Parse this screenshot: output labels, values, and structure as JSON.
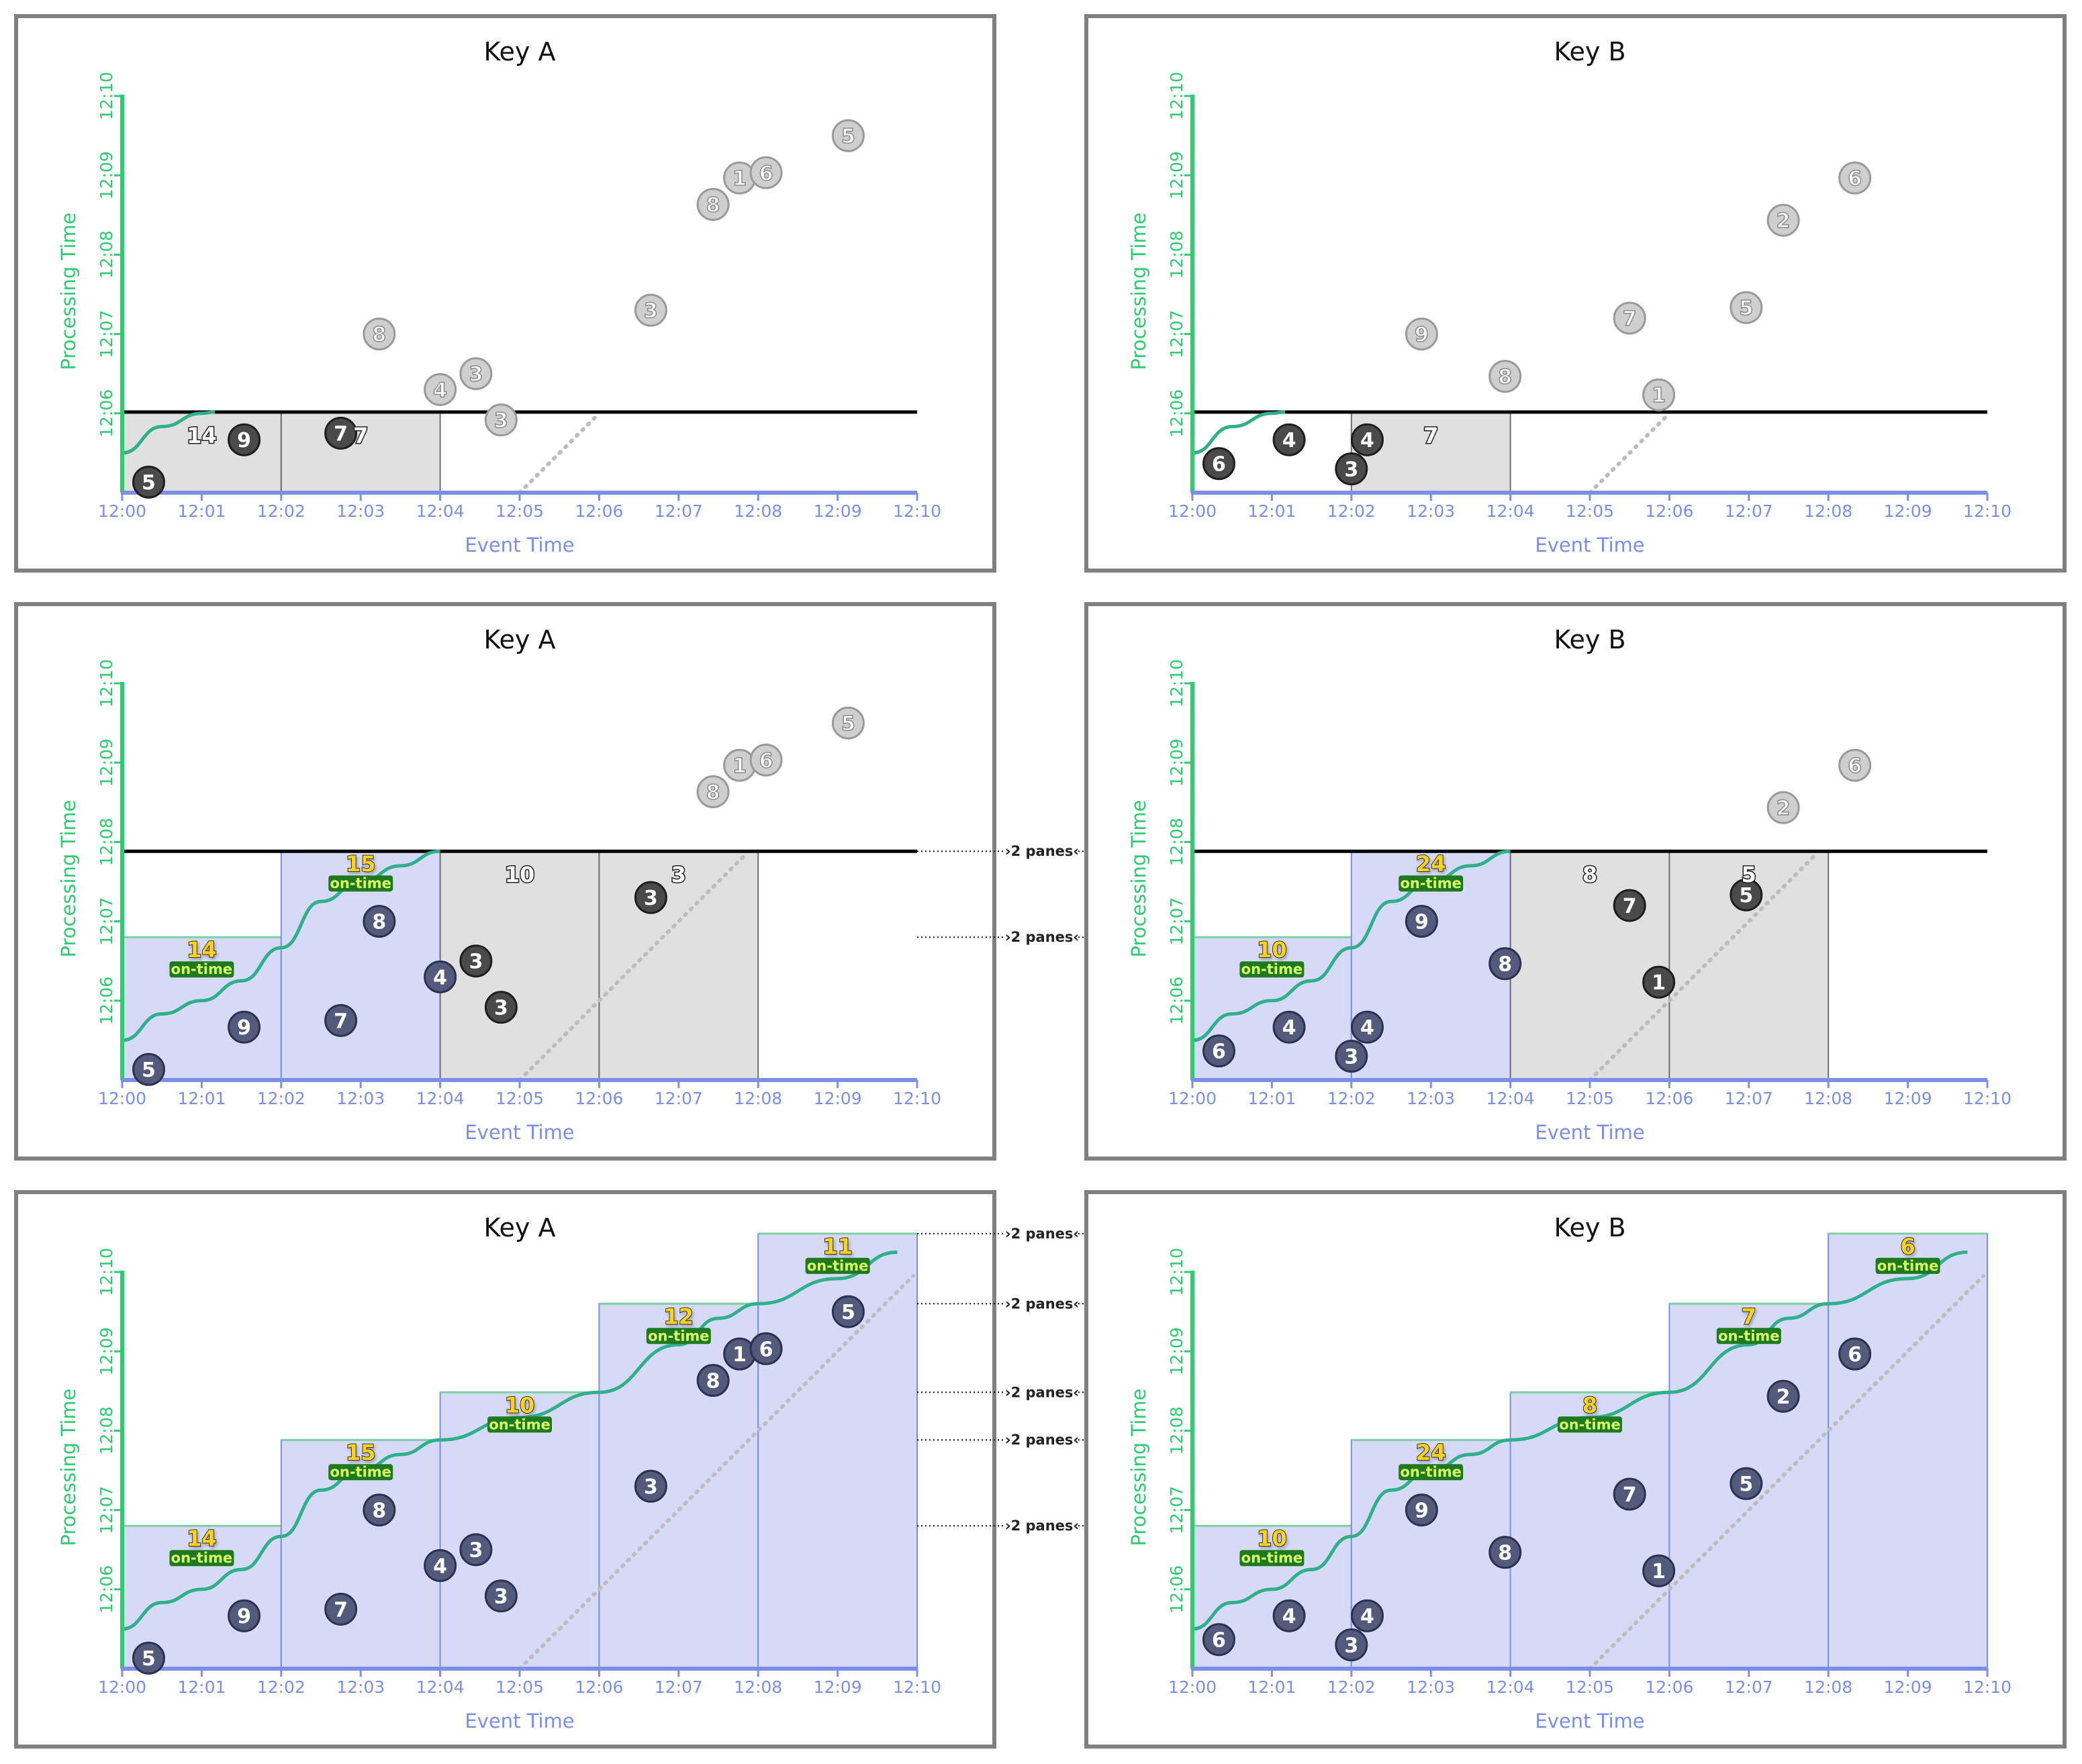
{
  "tick_labels": [
    "12:00",
    "12:01",
    "12:02",
    "12:03",
    "12:04",
    "12:05",
    "12:06",
    "12:07",
    "12:08",
    "12:09",
    "12:10"
  ],
  "colors": {
    "frame": "#808080",
    "green": "#2ecc71",
    "blue": "#7b8ee8",
    "pane_blue": "#d6daf6",
    "pane_gray": "#e0e0e0",
    "label_yellow": "#ffd21a",
    "label_green_bg": "#1f7a1f",
    "dot_dark": "#4a4a4a",
    "dot_navy": "#545a7c",
    "dot_light": "#cfcfcf"
  },
  "chart_data": [
    {
      "type": "scatter",
      "title": "Key A",
      "xlabel": "Event Time",
      "ylabel": "Processing Time",
      "xlim": [
        "12:00",
        "12:10"
      ],
      "ylim": [
        "12:05",
        "12:10"
      ],
      "watermark_line": "12:06:01",
      "points": [
        {
          "x": "12:00:20",
          "y": "12:05:08",
          "v": "5",
          "state": "dark"
        },
        {
          "x": "12:01:32",
          "y": "12:05:40",
          "v": "9",
          "state": "dark"
        },
        {
          "x": "12:02:45",
          "y": "12:05:45",
          "v": "7",
          "state": "dark"
        },
        {
          "x": "12:03:14",
          "y": "12:07:00",
          "v": "8",
          "state": "future"
        },
        {
          "x": "12:04:00",
          "y": "12:06:18",
          "v": "4",
          "state": "future"
        },
        {
          "x": "12:04:27",
          "y": "12:06:30",
          "v": "3",
          "state": "future"
        },
        {
          "x": "12:04:46",
          "y": "12:05:55",
          "v": "3",
          "state": "future"
        },
        {
          "x": "12:06:39",
          "y": "12:07:18",
          "v": "3",
          "state": "future"
        },
        {
          "x": "12:07:26",
          "y": "12:08:38",
          "v": "8",
          "state": "future"
        },
        {
          "x": "12:07:46",
          "y": "12:08:58",
          "v": "1",
          "state": "future"
        },
        {
          "x": "12:08:06",
          "y": "12:09:02",
          "v": "6",
          "state": "future"
        },
        {
          "x": "12:09:08",
          "y": "12:09:30",
          "v": "5",
          "state": "future"
        }
      ],
      "panes": [
        {
          "start": "12:00",
          "end": "12:02",
          "top": "12:06:01",
          "style": "gray",
          "value": "14"
        },
        {
          "start": "12:02",
          "end": "12:04",
          "top": "12:06:01",
          "style": "gray",
          "value": "7"
        }
      ],
      "watermark_curve": [
        [
          "12:00:00",
          "12:05:30"
        ],
        [
          "12:00:30",
          "12:05:50"
        ],
        [
          "12:01:00",
          "12:06:00"
        ],
        [
          "12:01:10",
          "12:06:01"
        ]
      ]
    },
    {
      "type": "scatter",
      "title": "Key B",
      "xlabel": "Event Time",
      "ylabel": "Processing Time",
      "xlim": [
        "12:00",
        "12:10"
      ],
      "ylim": [
        "12:05",
        "12:10"
      ],
      "watermark_line": "12:06:01",
      "points": [
        {
          "x": "12:00:20",
          "y": "12:05:22",
          "v": "6",
          "state": "dark"
        },
        {
          "x": "12:01:13",
          "y": "12:05:40",
          "v": "4",
          "state": "dark"
        },
        {
          "x": "12:02:00",
          "y": "12:05:18",
          "v": "3",
          "state": "dark"
        },
        {
          "x": "12:02:12",
          "y": "12:05:40",
          "v": "4",
          "state": "dark"
        },
        {
          "x": "12:02:53",
          "y": "12:07:00",
          "v": "9",
          "state": "future"
        },
        {
          "x": "12:03:56",
          "y": "12:06:28",
          "v": "8",
          "state": "future"
        },
        {
          "x": "12:05:30",
          "y": "12:07:12",
          "v": "7",
          "state": "future"
        },
        {
          "x": "12:05:52",
          "y": "12:06:14",
          "v": "1",
          "state": "future"
        },
        {
          "x": "12:06:58",
          "y": "12:07:20",
          "v": "5",
          "state": "future"
        },
        {
          "x": "12:07:26",
          "y": "12:08:26",
          "v": "2",
          "state": "future"
        },
        {
          "x": "12:08:20",
          "y": "12:08:58",
          "v": "6",
          "state": "future"
        }
      ],
      "panes": [
        {
          "start": "12:02",
          "end": "12:04",
          "top": "12:06:01",
          "style": "gray",
          "value": "7"
        }
      ],
      "watermark_curve": [
        [
          "12:00:00",
          "12:05:30"
        ],
        [
          "12:00:30",
          "12:05:50"
        ],
        [
          "12:01:00",
          "12:06:00"
        ],
        [
          "12:01:10",
          "12:06:01"
        ]
      ]
    },
    {
      "type": "scatter",
      "title": "Key A",
      "xlabel": "Event Time",
      "ylabel": "Processing Time",
      "xlim": [
        "12:00",
        "12:10"
      ],
      "ylim": [
        "12:05",
        "12:10"
      ],
      "watermark_line": "12:07:53",
      "points": [
        {
          "x": "12:00:20",
          "y": "12:05:08",
          "v": "5",
          "state": "navy"
        },
        {
          "x": "12:01:32",
          "y": "12:05:40",
          "v": "9",
          "state": "navy"
        },
        {
          "x": "12:02:45",
          "y": "12:05:45",
          "v": "7",
          "state": "navy"
        },
        {
          "x": "12:03:14",
          "y": "12:07:00",
          "v": "8",
          "state": "navy"
        },
        {
          "x": "12:04:00",
          "y": "12:06:18",
          "v": "4",
          "state": "navy"
        },
        {
          "x": "12:04:27",
          "y": "12:06:30",
          "v": "3",
          "state": "dark"
        },
        {
          "x": "12:04:46",
          "y": "12:05:55",
          "v": "3",
          "state": "dark"
        },
        {
          "x": "12:06:39",
          "y": "12:07:18",
          "v": "3",
          "state": "dark"
        },
        {
          "x": "12:07:26",
          "y": "12:08:38",
          "v": "8",
          "state": "future"
        },
        {
          "x": "12:07:46",
          "y": "12:08:58",
          "v": "1",
          "state": "future"
        },
        {
          "x": "12:08:06",
          "y": "12:09:02",
          "v": "6",
          "state": "future"
        },
        {
          "x": "12:09:08",
          "y": "12:09:30",
          "v": "5",
          "state": "future"
        }
      ],
      "panes": [
        {
          "start": "12:00",
          "end": "12:02",
          "top": "12:06:48",
          "style": "blue",
          "value": "14",
          "ontime": "on-time"
        },
        {
          "start": "12:02",
          "end": "12:04",
          "top": "12:07:53",
          "style": "blue",
          "value": "15",
          "ontime": "on-time"
        },
        {
          "start": "12:04",
          "end": "12:06",
          "top": "12:07:53",
          "style": "gray",
          "value": "10"
        },
        {
          "start": "12:06",
          "end": "12:08",
          "top": "12:07:53",
          "style": "gray",
          "value": "3"
        }
      ],
      "watermark_curve": [
        [
          "12:00:00",
          "12:05:30"
        ],
        [
          "12:00:30",
          "12:05:50"
        ],
        [
          "12:01:00",
          "12:06:00"
        ],
        [
          "12:01:30",
          "12:06:15"
        ],
        [
          "12:02:00",
          "12:06:40"
        ],
        [
          "12:02:30",
          "12:07:15"
        ],
        [
          "12:03:00",
          "12:07:30"
        ],
        [
          "12:03:30",
          "12:07:42"
        ],
        [
          "12:04:00",
          "12:07:53"
        ]
      ],
      "annotations": [
        {
          "y": "12:07:53",
          "text": "2 panes"
        },
        {
          "y": "12:06:48",
          "text": "2 panes"
        }
      ]
    },
    {
      "type": "scatter",
      "title": "Key B",
      "xlabel": "Event Time",
      "ylabel": "Processing Time",
      "xlim": [
        "12:00",
        "12:10"
      ],
      "ylim": [
        "12:05",
        "12:10"
      ],
      "watermark_line": "12:07:53",
      "points": [
        {
          "x": "12:00:20",
          "y": "12:05:22",
          "v": "6",
          "state": "navy"
        },
        {
          "x": "12:01:13",
          "y": "12:05:40",
          "v": "4",
          "state": "navy"
        },
        {
          "x": "12:02:00",
          "y": "12:05:18",
          "v": "3",
          "state": "navy"
        },
        {
          "x": "12:02:12",
          "y": "12:05:40",
          "v": "4",
          "state": "navy"
        },
        {
          "x": "12:02:53",
          "y": "12:07:00",
          "v": "9",
          "state": "navy"
        },
        {
          "x": "12:03:56",
          "y": "12:06:28",
          "v": "8",
          "state": "navy"
        },
        {
          "x": "12:05:30",
          "y": "12:07:12",
          "v": "7",
          "state": "dark"
        },
        {
          "x": "12:05:52",
          "y": "12:06:14",
          "v": "1",
          "state": "dark"
        },
        {
          "x": "12:06:58",
          "y": "12:07:20",
          "v": "5",
          "state": "dark"
        },
        {
          "x": "12:07:26",
          "y": "12:08:26",
          "v": "2",
          "state": "future"
        },
        {
          "x": "12:08:20",
          "y": "12:08:58",
          "v": "6",
          "state": "future"
        }
      ],
      "panes": [
        {
          "start": "12:00",
          "end": "12:02",
          "top": "12:06:48",
          "style": "blue",
          "value": "10",
          "ontime": "on-time"
        },
        {
          "start": "12:02",
          "end": "12:04",
          "top": "12:07:53",
          "style": "blue",
          "value": "24",
          "ontime": "on-time"
        },
        {
          "start": "12:04",
          "end": "12:06",
          "top": "12:07:53",
          "style": "gray",
          "value": "8"
        },
        {
          "start": "12:06",
          "end": "12:08",
          "top": "12:07:53",
          "style": "gray",
          "value": "5"
        }
      ],
      "watermark_curve": [
        [
          "12:00:00",
          "12:05:30"
        ],
        [
          "12:00:30",
          "12:05:50"
        ],
        [
          "12:01:00",
          "12:06:00"
        ],
        [
          "12:01:30",
          "12:06:15"
        ],
        [
          "12:02:00",
          "12:06:40"
        ],
        [
          "12:02:30",
          "12:07:15"
        ],
        [
          "12:03:00",
          "12:07:30"
        ],
        [
          "12:03:30",
          "12:07:42"
        ],
        [
          "12:04:00",
          "12:07:53"
        ]
      ]
    },
    {
      "type": "scatter",
      "title": "Key A",
      "xlabel": "Event Time",
      "ylabel": "Processing Time",
      "xlim": [
        "12:00",
        "12:10"
      ],
      "ylim": [
        "12:05",
        "12:10"
      ],
      "points": [
        {
          "x": "12:00:20",
          "y": "12:05:08",
          "v": "5",
          "state": "navy"
        },
        {
          "x": "12:01:32",
          "y": "12:05:40",
          "v": "9",
          "state": "navy"
        },
        {
          "x": "12:02:45",
          "y": "12:05:45",
          "v": "7",
          "state": "navy"
        },
        {
          "x": "12:03:14",
          "y": "12:07:00",
          "v": "8",
          "state": "navy"
        },
        {
          "x": "12:04:00",
          "y": "12:06:18",
          "v": "4",
          "state": "navy"
        },
        {
          "x": "12:04:27",
          "y": "12:06:30",
          "v": "3",
          "state": "navy"
        },
        {
          "x": "12:04:46",
          "y": "12:05:55",
          "v": "3",
          "state": "navy"
        },
        {
          "x": "12:06:39",
          "y": "12:07:18",
          "v": "3",
          "state": "navy"
        },
        {
          "x": "12:07:26",
          "y": "12:08:38",
          "v": "8",
          "state": "navy"
        },
        {
          "x": "12:07:46",
          "y": "12:08:58",
          "v": "1",
          "state": "navy"
        },
        {
          "x": "12:08:06",
          "y": "12:09:02",
          "v": "6",
          "state": "navy"
        },
        {
          "x": "12:09:08",
          "y": "12:09:30",
          "v": "5",
          "state": "navy"
        }
      ],
      "panes": [
        {
          "start": "12:00",
          "end": "12:02",
          "top": "12:06:48",
          "style": "blue",
          "value": "14",
          "ontime": "on-time"
        },
        {
          "start": "12:02",
          "end": "12:04",
          "top": "12:07:53",
          "style": "blue",
          "value": "15",
          "ontime": "on-time"
        },
        {
          "start": "12:04",
          "end": "12:06",
          "top": "12:08:29",
          "style": "blue",
          "value": "10",
          "ontime": "on-time"
        },
        {
          "start": "12:06",
          "end": "12:08",
          "top": "12:09:36",
          "style": "blue",
          "value": "12",
          "ontime": "on-time"
        },
        {
          "start": "12:08",
          "end": "12:10",
          "top": "12:10:29",
          "style": "blue",
          "value": "11",
          "ontime": "on-time"
        }
      ],
      "watermark_curve": [
        [
          "12:00:00",
          "12:05:30"
        ],
        [
          "12:00:30",
          "12:05:50"
        ],
        [
          "12:01:00",
          "12:06:00"
        ],
        [
          "12:01:30",
          "12:06:15"
        ],
        [
          "12:02:00",
          "12:06:40"
        ],
        [
          "12:02:30",
          "12:07:15"
        ],
        [
          "12:03:00",
          "12:07:30"
        ],
        [
          "12:03:30",
          "12:07:42"
        ],
        [
          "12:04:00",
          "12:07:53"
        ],
        [
          "12:05:00",
          "12:08:10"
        ],
        [
          "12:06:00",
          "12:08:29"
        ],
        [
          "12:07:00",
          "12:09:05"
        ],
        [
          "12:07:30",
          "12:09:25"
        ],
        [
          "12:08:00",
          "12:09:36"
        ],
        [
          "12:09:00",
          "12:09:55"
        ],
        [
          "12:09:45",
          "12:10:15"
        ]
      ],
      "annotations": [
        {
          "y": "12:10:29",
          "text": "2 panes"
        },
        {
          "y": "12:09:36",
          "text": "2 panes"
        },
        {
          "y": "12:08:29",
          "text": "2 panes"
        },
        {
          "y": "12:07:53",
          "text": "2 panes"
        },
        {
          "y": "12:06:48",
          "text": "2 panes"
        }
      ]
    },
    {
      "type": "scatter",
      "title": "Key B",
      "xlabel": "Event Time",
      "ylabel": "Processing Time",
      "xlim": [
        "12:00",
        "12:10"
      ],
      "ylim": [
        "12:05",
        "12:10"
      ],
      "points": [
        {
          "x": "12:00:20",
          "y": "12:05:22",
          "v": "6",
          "state": "navy"
        },
        {
          "x": "12:01:13",
          "y": "12:05:40",
          "v": "4",
          "state": "navy"
        },
        {
          "x": "12:02:00",
          "y": "12:05:18",
          "v": "3",
          "state": "navy"
        },
        {
          "x": "12:02:12",
          "y": "12:05:40",
          "v": "4",
          "state": "navy"
        },
        {
          "x": "12:02:53",
          "y": "12:07:00",
          "v": "9",
          "state": "navy"
        },
        {
          "x": "12:03:56",
          "y": "12:06:28",
          "v": "8",
          "state": "navy"
        },
        {
          "x": "12:05:30",
          "y": "12:07:12",
          "v": "7",
          "state": "navy"
        },
        {
          "x": "12:05:52",
          "y": "12:06:14",
          "v": "1",
          "state": "navy"
        },
        {
          "x": "12:06:58",
          "y": "12:07:20",
          "v": "5",
          "state": "navy"
        },
        {
          "x": "12:07:26",
          "y": "12:08:26",
          "v": "2",
          "state": "navy"
        },
        {
          "x": "12:08:20",
          "y": "12:08:58",
          "v": "6",
          "state": "navy"
        }
      ],
      "panes": [
        {
          "start": "12:00",
          "end": "12:02",
          "top": "12:06:48",
          "style": "blue",
          "value": "10",
          "ontime": "on-time"
        },
        {
          "start": "12:02",
          "end": "12:04",
          "top": "12:07:53",
          "style": "blue",
          "value": "24",
          "ontime": "on-time"
        },
        {
          "start": "12:04",
          "end": "12:06",
          "top": "12:08:29",
          "style": "blue",
          "value": "8",
          "ontime": "on-time"
        },
        {
          "start": "12:06",
          "end": "12:08",
          "top": "12:09:36",
          "style": "blue",
          "value": "7",
          "ontime": "on-time"
        },
        {
          "start": "12:08",
          "end": "12:10",
          "top": "12:10:29",
          "style": "blue",
          "value": "6",
          "ontime": "on-time"
        }
      ],
      "watermark_curve": [
        [
          "12:00:00",
          "12:05:30"
        ],
        [
          "12:00:30",
          "12:05:50"
        ],
        [
          "12:01:00",
          "12:06:00"
        ],
        [
          "12:01:30",
          "12:06:15"
        ],
        [
          "12:02:00",
          "12:06:40"
        ],
        [
          "12:02:30",
          "12:07:15"
        ],
        [
          "12:03:00",
          "12:07:30"
        ],
        [
          "12:03:30",
          "12:07:42"
        ],
        [
          "12:04:00",
          "12:07:53"
        ],
        [
          "12:05:00",
          "12:08:10"
        ],
        [
          "12:06:00",
          "12:08:29"
        ],
        [
          "12:07:00",
          "12:09:05"
        ],
        [
          "12:07:30",
          "12:09:25"
        ],
        [
          "12:08:00",
          "12:09:36"
        ],
        [
          "12:09:00",
          "12:09:55"
        ],
        [
          "12:09:45",
          "12:10:15"
        ]
      ]
    }
  ]
}
